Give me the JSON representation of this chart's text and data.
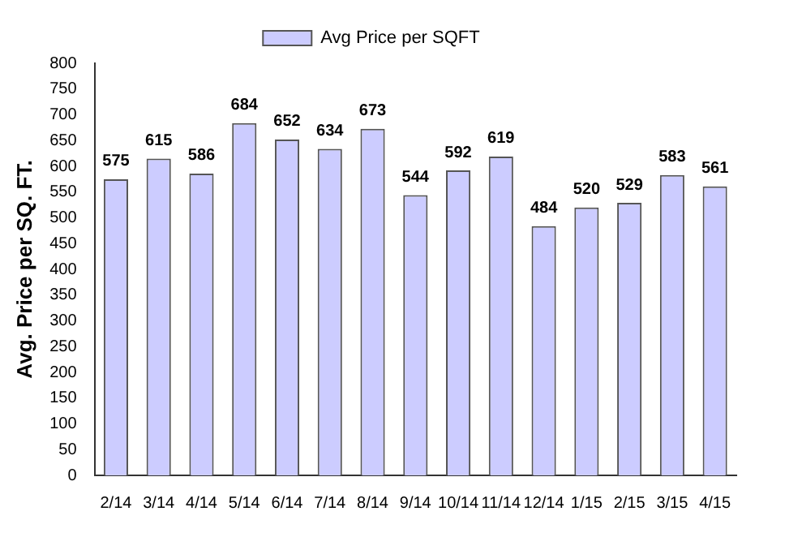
{
  "chart_data": {
    "type": "bar",
    "ylabel": "Avg. Price per SQ. FT.",
    "categories": [
      "2/14",
      "3/14",
      "4/14",
      "5/14",
      "6/14",
      "7/14",
      "8/14",
      "9/14",
      "10/14",
      "11/14",
      "12/14",
      "1/15",
      "2/15",
      "3/15",
      "4/15"
    ],
    "series": [
      {
        "name": "Avg Price per SQFT",
        "color": "#ccccff",
        "values": [
          575,
          615,
          586,
          684,
          652,
          634,
          673,
          544,
          592,
          619,
          484,
          520,
          529,
          583,
          561
        ]
      }
    ],
    "ylim": [
      0,
      800
    ],
    "yticks": [
      0,
      50,
      100,
      150,
      200,
      250,
      300,
      350,
      400,
      450,
      500,
      550,
      600,
      650,
      700,
      750,
      800
    ],
    "grid": false,
    "legend": "top",
    "data_labels": true
  }
}
